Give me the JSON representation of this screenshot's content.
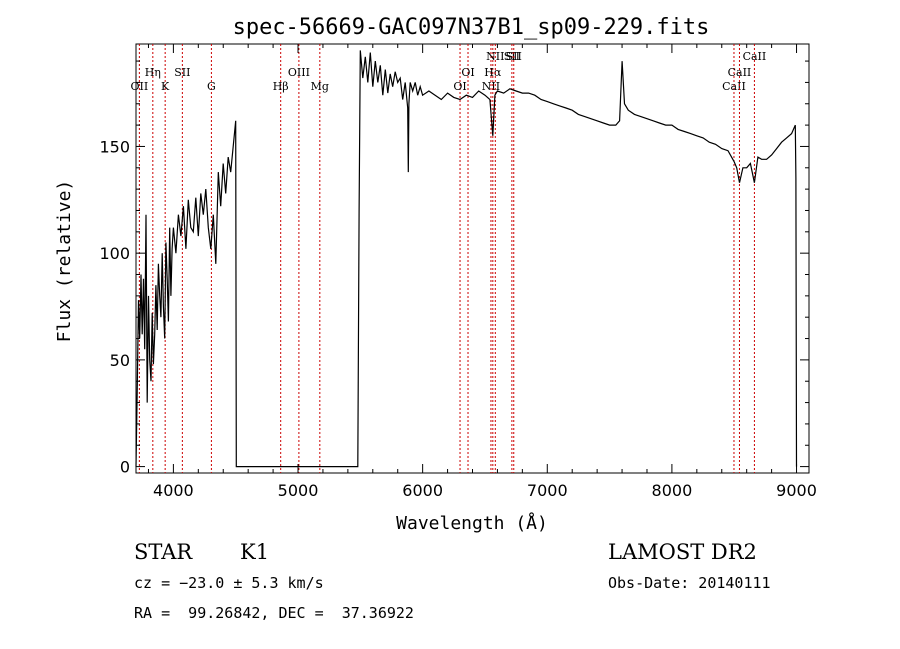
{
  "chart_data": {
    "type": "line",
    "title": "spec-56669-GAC097N37B1_sp09-229.fits",
    "xlabel": "Wavelength (Å)",
    "ylabel": "Flux (relative)",
    "xlim": [
      3700,
      9100
    ],
    "ylim": [
      -3,
      198
    ],
    "xticks": [
      4000,
      5000,
      6000,
      7000,
      8000,
      9000
    ],
    "yticks": [
      0,
      50,
      100,
      150
    ],
    "line_color": "#000000",
    "marker_color": "#cc0000",
    "lines": [
      {
        "name": "OII",
        "x": 3727
      },
      {
        "name": "Hη",
        "x": 3835
      },
      {
        "name": "K",
        "x": 3934
      },
      {
        "name": "SII",
        "x": 4072
      },
      {
        "name": "G",
        "x": 4305
      },
      {
        "name": "Hβ",
        "x": 4861
      },
      {
        "name": "OIII",
        "x": 5007
      },
      {
        "name": "Mg",
        "x": 5175
      },
      {
        "name": "OI",
        "x": 6300
      },
      {
        "name": "OI",
        "x": 6364
      },
      {
        "name": "NII",
        "x": 6548
      },
      {
        "name": "Hα",
        "x": 6563
      },
      {
        "name": "NII",
        "x": 6583
      },
      {
        "name": "SII",
        "x": 6716
      },
      {
        "name": "SII",
        "x": 6731
      },
      {
        "name": "CaII",
        "x": 8498
      },
      {
        "name": "CaII",
        "x": 8542
      },
      {
        "name": "CaII",
        "x": 8662
      }
    ],
    "spectrum": [
      [
        3700,
        0
      ],
      [
        3710,
        35
      ],
      [
        3720,
        78
      ],
      [
        3730,
        60
      ],
      [
        3740,
        90
      ],
      [
        3750,
        62
      ],
      [
        3760,
        88
      ],
      [
        3770,
        55
      ],
      [
        3780,
        118
      ],
      [
        3790,
        30
      ],
      [
        3800,
        80
      ],
      [
        3810,
        50
      ],
      [
        3820,
        40
      ],
      [
        3830,
        72
      ],
      [
        3840,
        48
      ],
      [
        3850,
        62
      ],
      [
        3860,
        85
      ],
      [
        3870,
        64
      ],
      [
        3880,
        95
      ],
      [
        3890,
        80
      ],
      [
        3900,
        70
      ],
      [
        3910,
        100
      ],
      [
        3920,
        75
      ],
      [
        3930,
        60
      ],
      [
        3940,
        105
      ],
      [
        3950,
        88
      ],
      [
        3960,
        68
      ],
      [
        3970,
        112
      ],
      [
        3980,
        80
      ],
      [
        3990,
        102
      ],
      [
        4000,
        112
      ],
      [
        4020,
        100
      ],
      [
        4040,
        118
      ],
      [
        4060,
        108
      ],
      [
        4080,
        122
      ],
      [
        4100,
        102
      ],
      [
        4120,
        125
      ],
      [
        4140,
        112
      ],
      [
        4160,
        110
      ],
      [
        4180,
        126
      ],
      [
        4200,
        108
      ],
      [
        4220,
        128
      ],
      [
        4240,
        118
      ],
      [
        4260,
        130
      ],
      [
        4280,
        112
      ],
      [
        4300,
        102
      ],
      [
        4320,
        118
      ],
      [
        4340,
        95
      ],
      [
        4360,
        138
      ],
      [
        4380,
        122
      ],
      [
        4400,
        142
      ],
      [
        4420,
        128
      ],
      [
        4440,
        145
      ],
      [
        4460,
        138
      ],
      [
        4480,
        150
      ],
      [
        4500,
        162
      ],
      [
        4505,
        0
      ],
      [
        5480,
        0
      ],
      [
        5490,
        120
      ],
      [
        5500,
        195
      ],
      [
        5520,
        182
      ],
      [
        5540,
        192
      ],
      [
        5560,
        180
      ],
      [
        5580,
        194
      ],
      [
        5600,
        178
      ],
      [
        5620,
        190
      ],
      [
        5640,
        180
      ],
      [
        5660,
        188
      ],
      [
        5680,
        174
      ],
      [
        5700,
        186
      ],
      [
        5720,
        175
      ],
      [
        5740,
        184
      ],
      [
        5760,
        178
      ],
      [
        5780,
        185
      ],
      [
        5800,
        180
      ],
      [
        5820,
        182
      ],
      [
        5840,
        172
      ],
      [
        5860,
        180
      ],
      [
        5880,
        168
      ],
      [
        5885,
        138
      ],
      [
        5890,
        170
      ],
      [
        5900,
        180
      ],
      [
        5920,
        176
      ],
      [
        5940,
        180
      ],
      [
        5960,
        174
      ],
      [
        5980,
        178
      ],
      [
        6000,
        174
      ],
      [
        6050,
        176
      ],
      [
        6100,
        174
      ],
      [
        6150,
        172
      ],
      [
        6200,
        175
      ],
      [
        6250,
        173
      ],
      [
        6300,
        172
      ],
      [
        6350,
        174
      ],
      [
        6400,
        173
      ],
      [
        6450,
        176
      ],
      [
        6500,
        174
      ],
      [
        6540,
        172
      ],
      [
        6563,
        155
      ],
      [
        6580,
        174
      ],
      [
        6600,
        176
      ],
      [
        6650,
        175
      ],
      [
        6700,
        177
      ],
      [
        6750,
        176
      ],
      [
        6800,
        175
      ],
      [
        6850,
        175
      ],
      [
        6900,
        174
      ],
      [
        6950,
        172
      ],
      [
        7000,
        171
      ],
      [
        7050,
        170
      ],
      [
        7100,
        169
      ],
      [
        7150,
        168
      ],
      [
        7200,
        167
      ],
      [
        7250,
        165
      ],
      [
        7300,
        164
      ],
      [
        7350,
        163
      ],
      [
        7400,
        162
      ],
      [
        7450,
        161
      ],
      [
        7500,
        160
      ],
      [
        7550,
        160
      ],
      [
        7580,
        162
      ],
      [
        7600,
        190
      ],
      [
        7620,
        170
      ],
      [
        7650,
        167
      ],
      [
        7700,
        165
      ],
      [
        7750,
        164
      ],
      [
        7800,
        163
      ],
      [
        7850,
        162
      ],
      [
        7900,
        161
      ],
      [
        7950,
        160
      ],
      [
        8000,
        160
      ],
      [
        8050,
        158
      ],
      [
        8100,
        157
      ],
      [
        8150,
        156
      ],
      [
        8200,
        155
      ],
      [
        8250,
        154
      ],
      [
        8300,
        152
      ],
      [
        8350,
        151
      ],
      [
        8400,
        149
      ],
      [
        8450,
        148
      ],
      [
        8498,
        143
      ],
      [
        8520,
        140
      ],
      [
        8542,
        133
      ],
      [
        8570,
        140
      ],
      [
        8600,
        140
      ],
      [
        8630,
        142
      ],
      [
        8662,
        133
      ],
      [
        8690,
        145
      ],
      [
        8720,
        144
      ],
      [
        8760,
        144
      ],
      [
        8800,
        146
      ],
      [
        8840,
        149
      ],
      [
        8880,
        152
      ],
      [
        8920,
        154
      ],
      [
        8960,
        156
      ],
      [
        8990,
        160
      ],
      [
        8995,
        135
      ],
      [
        9000,
        0
      ]
    ]
  },
  "info": {
    "class": "STAR",
    "subclass": "K1",
    "survey": "LAMOST DR2",
    "cz": "cz = −23.0 ± 5.3 km/s",
    "obs_date": "Obs-Date: 20140111",
    "coords": "RA =  99.26842, DEC =  37.36922"
  }
}
